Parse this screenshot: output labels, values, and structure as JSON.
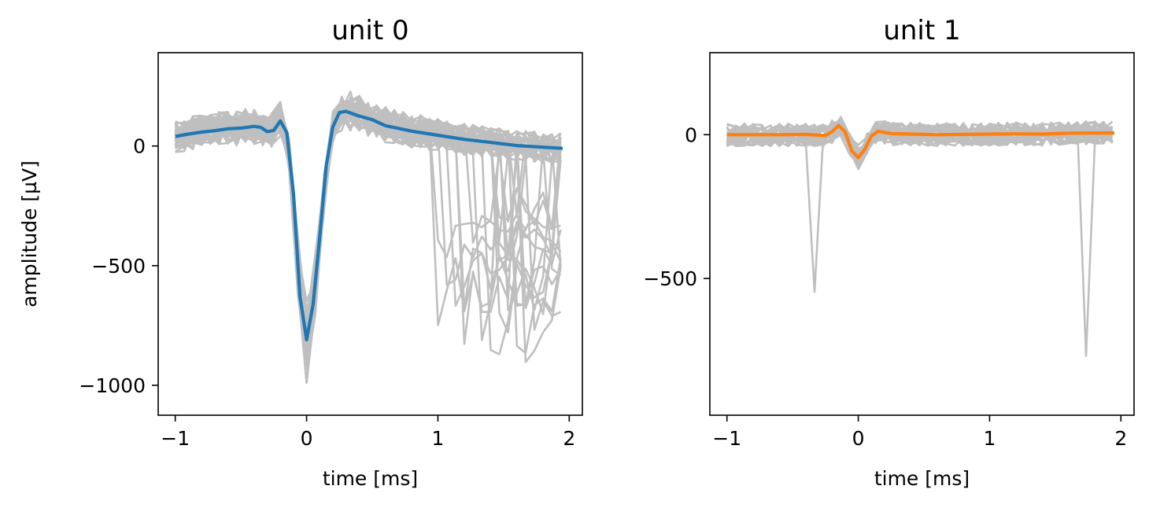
{
  "chart_data": [
    {
      "type": "line",
      "title": "unit 0",
      "xlabel": "time [ms]",
      "ylabel": "amplitude [µV]",
      "xlim": [
        -1.13,
        2.1
      ],
      "ylim": [
        -1125,
        390
      ],
      "xticks": [
        -1,
        0,
        1,
        2
      ],
      "yticks": [
        -1000,
        -500,
        0
      ],
      "xtick_labels": [
        "−1",
        "0",
        "1",
        "2"
      ],
      "ytick_labels": [
        "−1000",
        "−500",
        "0"
      ],
      "background_traces": {
        "color": "#bfbfbf",
        "description_count": 40,
        "amplitude_trough": -820,
        "spread": 130
      },
      "series": [
        {
          "color": "#1f77b4",
          "x": [
            -1.0,
            -0.9,
            -0.8,
            -0.7,
            -0.6,
            -0.5,
            -0.4,
            -0.35,
            -0.3,
            -0.25,
            -0.2,
            -0.15,
            -0.1,
            -0.05,
            0.0,
            0.05,
            0.1,
            0.15,
            0.2,
            0.25,
            0.3,
            0.4,
            0.5,
            0.6,
            0.8,
            1.0,
            1.2,
            1.4,
            1.6,
            1.8,
            1.95
          ],
          "values": [
            40,
            50,
            58,
            64,
            72,
            75,
            82,
            78,
            60,
            65,
            105,
            55,
            -200,
            -630,
            -810,
            -660,
            -380,
            -80,
            80,
            140,
            145,
            125,
            110,
            85,
            62,
            45,
            28,
            15,
            2,
            -5,
            -10
          ]
        }
      ]
    },
    {
      "type": "line",
      "title": "unit 1",
      "xlabel": "time [ms]",
      "ylabel": "",
      "xlim": [
        -1.13,
        2.1
      ],
      "ylim": [
        -975,
        285
      ],
      "xticks": [
        -1,
        0,
        1,
        2
      ],
      "yticks": [
        -500,
        0
      ],
      "xtick_labels": [
        "−1",
        "0",
        "1",
        "2"
      ],
      "ytick_labels": [
        "−500",
        "0"
      ],
      "background_traces": {
        "color": "#bfbfbf",
        "description_count": 30,
        "amplitude_trough": -80,
        "spread": 80
      },
      "series": [
        {
          "color": "#ff7f0e",
          "x": [
            -1.0,
            -0.8,
            -0.6,
            -0.4,
            -0.3,
            -0.25,
            -0.2,
            -0.15,
            -0.1,
            -0.05,
            0.0,
            0.05,
            0.1,
            0.15,
            0.25,
            0.4,
            0.6,
            0.8,
            1.0,
            1.2,
            1.4,
            1.6,
            1.8,
            1.95
          ],
          "values": [
            0,
            0,
            0,
            1,
            -2,
            -3,
            10,
            32,
            10,
            -55,
            -80,
            -50,
            -5,
            12,
            4,
            2,
            0,
            1,
            2,
            3,
            2,
            5,
            6,
            6
          ]
        }
      ]
    }
  ]
}
